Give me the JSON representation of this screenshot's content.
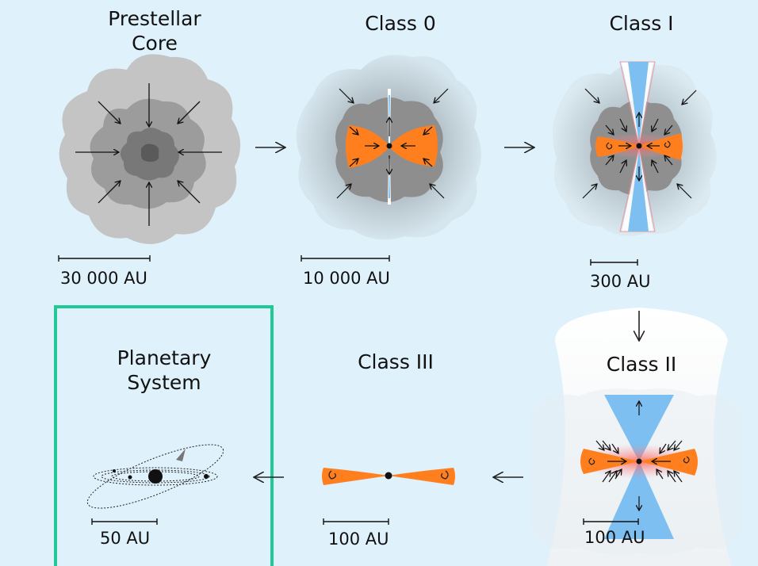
{
  "stages": [
    {
      "id": "prestellar",
      "title_line1": "Prestellar",
      "title_line2": "Core",
      "scale": "30 000 AU"
    },
    {
      "id": "class0",
      "title_line1": "Class 0",
      "title_line2": "",
      "scale": "10 000 AU"
    },
    {
      "id": "class1",
      "title_line1": "Class I",
      "title_line2": "",
      "scale": "300 AU"
    },
    {
      "id": "class2",
      "title_line1": "Class II",
      "title_line2": "",
      "scale": "100 AU"
    },
    {
      "id": "class3",
      "title_line1": "Class III",
      "title_line2": "",
      "scale": "100 AU"
    },
    {
      "id": "planetary",
      "title_line1": "Planetary",
      "title_line2": "System",
      "scale": "50 AU"
    }
  ],
  "colors": {
    "background": "#dff1fb",
    "disk": "#ff7f1e",
    "outflow": "#7cbff0",
    "cloud_light": "#c4c4c4",
    "cloud_mid": "#9a9a9a",
    "cloud_dark": "#707070",
    "highlight_frame": "#22c997"
  }
}
